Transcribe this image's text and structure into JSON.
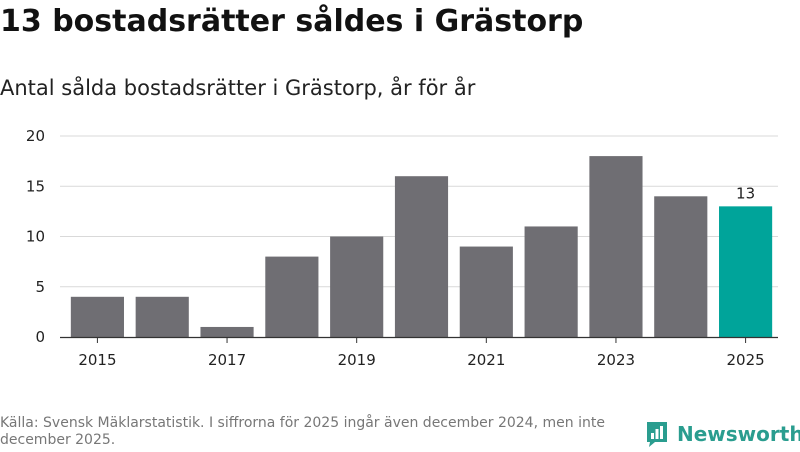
{
  "title": "13 bostadsrätter såldes i Grästorp",
  "subtitle": "Antal sålda bostadsrätter i Grästorp, år för år",
  "source": "Källa: Svensk Mäklarstatistik. I siffrorna för 2025 ingår även december 2024, men inte december 2025.",
  "logo_text": "Newsworthy",
  "colors": {
    "bar": "#6f6e73",
    "highlight": "#00a49a",
    "grid": "#d9d9d9",
    "axis": "#333333"
  },
  "chart_data": {
    "type": "bar",
    "title": "13 bostadsrätter såldes i Grästorp",
    "subtitle": "Antal sålda bostadsrätter i Grästorp, år för år",
    "xlabel": "",
    "ylabel": "",
    "categories": [
      "2015",
      "2016",
      "2017",
      "2018",
      "2019",
      "2020",
      "2021",
      "2022",
      "2023",
      "2024",
      "2025"
    ],
    "values": [
      4,
      4,
      1,
      8,
      10,
      16,
      9,
      11,
      18,
      14,
      13
    ],
    "x_tick_labels": [
      "2015",
      "2017",
      "2019",
      "2021",
      "2023",
      "2025"
    ],
    "y_ticks": [
      0,
      5,
      10,
      15,
      20
    ],
    "ylim": [
      0,
      20
    ],
    "grid": true,
    "highlight_index": 10,
    "data_labels": [
      {
        "index": 10,
        "text": "13"
      }
    ]
  }
}
